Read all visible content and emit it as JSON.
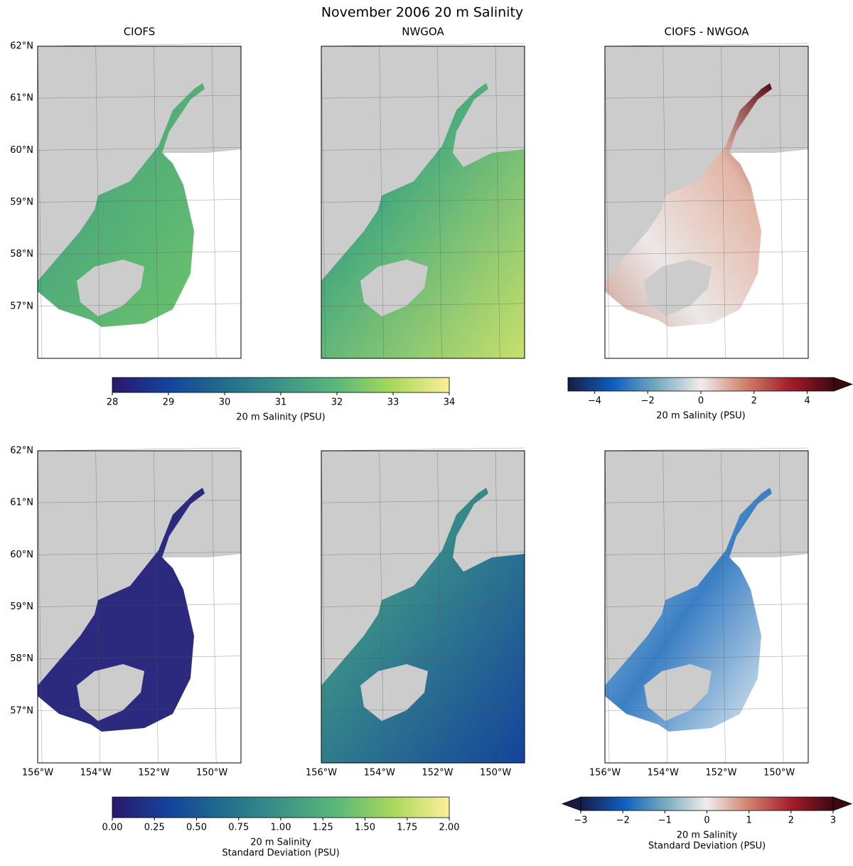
{
  "title": "November 2006 20 m Salinity",
  "column_titles": [
    "CIOFS",
    "NWGOA",
    "CIOFS - NWGOA"
  ],
  "map_extent": {
    "xlim": [
      -156,
      -149
    ],
    "ylim": [
      56,
      62
    ]
  },
  "lat_ticks": [
    {
      "value": 62,
      "label": "62°N"
    },
    {
      "value": 61,
      "label": "61°N"
    },
    {
      "value": 60,
      "label": "60°N"
    },
    {
      "value": 59,
      "label": "59°N"
    },
    {
      "value": 58,
      "label": "58°N"
    },
    {
      "value": 57,
      "label": "57°N"
    }
  ],
  "lon_ticks": [
    {
      "value": -156,
      "label": "156°W"
    },
    {
      "value": -154,
      "label": "154°W"
    },
    {
      "value": -152,
      "label": "152°W"
    },
    {
      "value": -150,
      "label": "150°W"
    }
  ],
  "colorbars": [
    {
      "label_lines": [
        "20 m Salinity (PSU)"
      ],
      "lim": [
        28,
        34
      ],
      "ticks": [
        28,
        29,
        30,
        31,
        32,
        33,
        34
      ],
      "colors": [
        "#2a186c",
        "#14439c",
        "#206e8b",
        "#3c9387",
        "#5ab978",
        "#aad85c",
        "#fdef9a"
      ]
    },
    {
      "label_lines": [
        "20 m Salinity (PSU)"
      ],
      "lim": [
        -5,
        5
      ],
      "extend": "max",
      "ticks": [
        {
          "value": -4,
          "label": "−4"
        },
        {
          "value": -2,
          "label": "−2"
        },
        0,
        2,
        4
      ],
      "colors": [
        "#181c43",
        "#0c5ebe",
        "#75aabe",
        "#f1ecec",
        "#d0816b",
        "#a51d2b",
        "#3c0911"
      ]
    },
    {
      "label_lines": [
        "20 m Salinity",
        "Standard Deviation (PSU)"
      ],
      "lim": [
        0,
        2
      ],
      "ticks": [
        {
          "value": 0,
          "label": "0.00"
        },
        0.25,
        {
          "value": 0.5,
          "label": "0.50"
        },
        0.75,
        {
          "value": 1,
          "label": "1.00"
        },
        1.25,
        {
          "value": 1.5,
          "label": "1.50"
        },
        1.75,
        {
          "value": 2,
          "label": "2.00"
        }
      ],
      "colors": [
        "#2a186c",
        "#14439c",
        "#206e8b",
        "#3c9387",
        "#5ab978",
        "#aad85c",
        "#fdef9a"
      ]
    },
    {
      "label_lines": [
        "20 m Salinity",
        "Standard Deviation (PSU)"
      ],
      "lim": [
        -3,
        3
      ],
      "extend": "both",
      "ticks": [
        {
          "value": -3,
          "label": "−3"
        },
        {
          "value": -2,
          "label": "−2"
        },
        {
          "value": -1,
          "label": "−1"
        },
        0,
        1,
        2,
        3
      ],
      "colors": [
        "#181c43",
        "#0c5ebe",
        "#75aabe",
        "#f1ecec",
        "#d0816b",
        "#a51d2b",
        "#3c0911"
      ]
    }
  ]
}
